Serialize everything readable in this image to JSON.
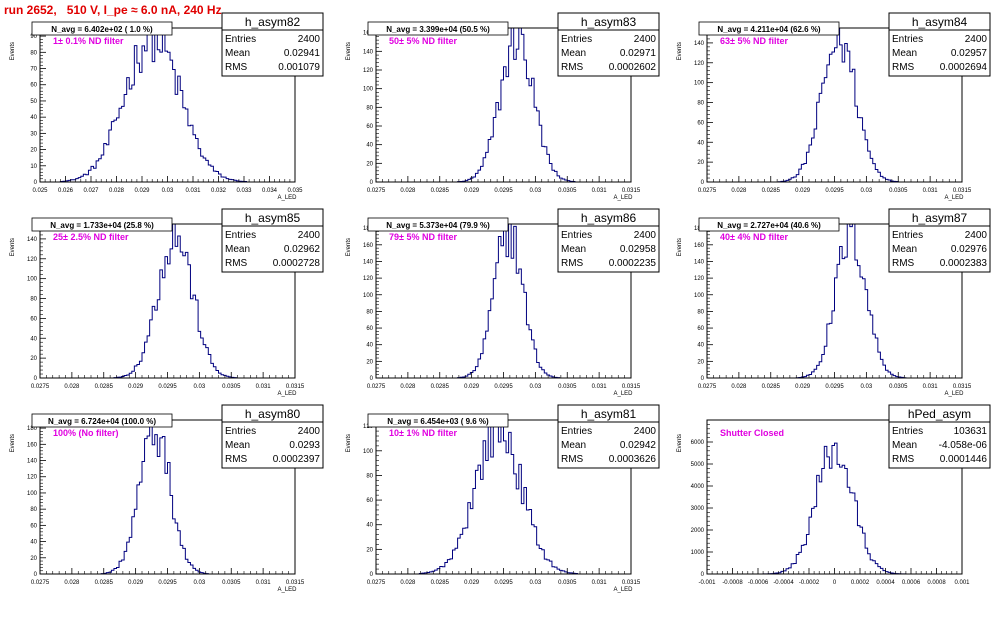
{
  "page_title": "run 2652,   510 V, I_pe ≈ 6.0 nA, 240 Hz",
  "stats_labels": {
    "entries": "Entries",
    "mean": "Mean",
    "rms": "RMS"
  },
  "line_color": "#00007f",
  "filter_color": "#e000e0",
  "chart_data": [
    {
      "type": "histogram",
      "name": "h_asym82",
      "ylabel": "Events",
      "xlabel": "A_LED",
      "navg": "N_avg = 6.402e+02 ( 1.0 %)",
      "filter": "1± 0.1% ND filter",
      "stats": {
        "entries": "2400",
        "mean": "0.02941",
        "rms": "0.001079"
      },
      "xlim": [
        0.025,
        0.035
      ],
      "ylim": [
        0,
        95
      ],
      "xticks": [
        0.025,
        0.026,
        0.027,
        0.028,
        0.029,
        0.03,
        0.031,
        0.032,
        0.033,
        0.034,
        0.035
      ],
      "xticklabels": [
        "0.025",
        "0.026",
        "0.027",
        "0.028",
        "0.029",
        "0.03",
        "0.031",
        "0.032",
        "0.033",
        "0.034",
        "0.035"
      ],
      "yticks": [
        0,
        10,
        20,
        30,
        40,
        50,
        60,
        70,
        80,
        90
      ],
      "yticklabels": [
        "0",
        "10",
        "20",
        "30",
        "40",
        "50",
        "60",
        "70",
        "80",
        "90"
      ],
      "mean": 0.02941,
      "sigma": 0.001079,
      "peak": 90
    },
    {
      "type": "histogram",
      "name": "h_asym83",
      "ylabel": "Events",
      "xlabel": "A_LED",
      "navg": "N_avg = 3.399e+04 (50.5 %)",
      "filter": "50± 5% ND filter",
      "stats": {
        "entries": "2400",
        "mean": "0.02971",
        "rms": "0.0002602"
      },
      "xlim": [
        0.0275,
        0.0315
      ],
      "ylim": [
        0,
        165
      ],
      "xticks": [
        0.0275,
        0.028,
        0.0285,
        0.029,
        0.0295,
        0.03,
        0.0305,
        0.031,
        0.0315
      ],
      "xticklabels": [
        "0.0275",
        "0.028",
        "0.0285",
        "0.029",
        "0.0295",
        "0.03",
        "0.0305",
        "0.031",
        "0.0315"
      ],
      "yticks": [
        0,
        20,
        40,
        60,
        80,
        100,
        120,
        140,
        160
      ],
      "yticklabels": [
        "0",
        "20",
        "40",
        "60",
        "80",
        "100",
        "120",
        "140",
        "160"
      ],
      "mean": 0.02971,
      "sigma": 0.0002602,
      "peak": 155
    },
    {
      "type": "histogram",
      "name": "h_asym84",
      "ylabel": "Events",
      "xlabel": "A_LED",
      "navg": "N_avg = 4.211e+04 (62.6 %)",
      "filter": "63± 5% ND filter",
      "stats": {
        "entries": "2400",
        "mean": "0.02957",
        "rms": "0.0002694"
      },
      "xlim": [
        0.0275,
        0.0315
      ],
      "ylim": [
        0,
        155
      ],
      "xticks": [
        0.0275,
        0.028,
        0.0285,
        0.029,
        0.0295,
        0.03,
        0.0305,
        0.031,
        0.0315
      ],
      "xticklabels": [
        "0.0275",
        "0.028",
        "0.0285",
        "0.029",
        "0.0295",
        "0.03",
        "0.0305",
        "0.031",
        "0.0315"
      ],
      "yticks": [
        0,
        20,
        40,
        60,
        80,
        100,
        120,
        140
      ],
      "yticklabels": [
        "0",
        "20",
        "40",
        "60",
        "80",
        "100",
        "120",
        "140"
      ],
      "mean": 0.02957,
      "sigma": 0.0002694,
      "peak": 145
    },
    {
      "type": "histogram",
      "name": "h_asym85",
      "ylabel": "Events",
      "xlabel": "A_LED",
      "navg": "N_avg = 1.733e+04 (25.8 %)",
      "filter": "25± 2.5% ND filter",
      "stats": {
        "entries": "2400",
        "mean": "0.02962",
        "rms": "0.0002728"
      },
      "xlim": [
        0.0275,
        0.0315
      ],
      "ylim": [
        0,
        155
      ],
      "xticks": [
        0.0275,
        0.028,
        0.0285,
        0.029,
        0.0295,
        0.03,
        0.0305,
        0.031,
        0.0315
      ],
      "xticklabels": [
        "0.0275",
        "0.028",
        "0.0285",
        "0.029",
        "0.0295",
        "0.03",
        "0.0305",
        "0.031",
        "0.0315"
      ],
      "yticks": [
        0,
        20,
        40,
        60,
        80,
        100,
        120,
        140
      ],
      "yticklabels": [
        "0",
        "20",
        "40",
        "60",
        "80",
        "100",
        "120",
        "140"
      ],
      "mean": 0.02962,
      "sigma": 0.0002728,
      "peak": 145
    },
    {
      "type": "histogram",
      "name": "h_asym86",
      "ylabel": "Events",
      "xlabel": "A_LED",
      "navg": "N_avg = 5.373e+04 (79.9 %)",
      "filter": "79± 5% ND filter",
      "stats": {
        "entries": "2400",
        "mean": "0.02958",
        "rms": "0.0002235"
      },
      "xlim": [
        0.0275,
        0.0315
      ],
      "ylim": [
        0,
        185
      ],
      "xticks": [
        0.0275,
        0.028,
        0.0285,
        0.029,
        0.0295,
        0.03,
        0.0305,
        0.031,
        0.0315
      ],
      "xticklabels": [
        "0.0275",
        "0.028",
        "0.0285",
        "0.029",
        "0.0295",
        "0.03",
        "0.0305",
        "0.031",
        "0.0315"
      ],
      "yticks": [
        0,
        20,
        40,
        60,
        80,
        100,
        120,
        140,
        160,
        180
      ],
      "yticklabels": [
        "0",
        "20",
        "40",
        "60",
        "80",
        "100",
        "120",
        "140",
        "160",
        "180"
      ],
      "mean": 0.02958,
      "sigma": 0.0002235,
      "peak": 178
    },
    {
      "type": "histogram",
      "name": "h_asym87",
      "ylabel": "Events",
      "xlabel": "A_LED",
      "navg": "N_avg = 2.727e+04 (40.6 %)",
      "filter": "40± 4% ND filter",
      "stats": {
        "entries": "2400",
        "mean": "0.02976",
        "rms": "0.0002383"
      },
      "xlim": [
        0.0275,
        0.0315
      ],
      "ylim": [
        0,
        185
      ],
      "xticks": [
        0.0275,
        0.028,
        0.0285,
        0.029,
        0.0295,
        0.03,
        0.0305,
        0.031,
        0.0315
      ],
      "xticklabels": [
        "0.0275",
        "0.028",
        "0.0285",
        "0.029",
        "0.0295",
        "0.03",
        "0.0305",
        "0.031",
        "0.0315"
      ],
      "yticks": [
        0,
        20,
        40,
        60,
        80,
        100,
        120,
        140,
        160,
        180
      ],
      "yticklabels": [
        "0",
        "20",
        "40",
        "60",
        "80",
        "100",
        "120",
        "140",
        "160",
        "180"
      ],
      "mean": 0.02976,
      "sigma": 0.0002383,
      "peak": 175
    },
    {
      "type": "histogram",
      "name": "h_asym80",
      "ylabel": "Events",
      "xlabel": "A_LED",
      "navg": "N_avg = 6.724e+04 (100.0 %)",
      "filter": "100% (No filter)",
      "stats": {
        "entries": "2400",
        "mean": "0.0293",
        "rms": "0.0002397"
      },
      "xlim": [
        0.0275,
        0.0315
      ],
      "ylim": [
        0,
        190
      ],
      "xticks": [
        0.0275,
        0.028,
        0.0285,
        0.029,
        0.0295,
        0.03,
        0.0305,
        0.031,
        0.0315
      ],
      "xticklabels": [
        "0.0275",
        "0.028",
        "0.0285",
        "0.029",
        "0.0295",
        "0.03",
        "0.0305",
        "0.031",
        "0.0315"
      ],
      "yticks": [
        0,
        20,
        40,
        60,
        80,
        100,
        120,
        140,
        160,
        180
      ],
      "yticklabels": [
        "0",
        "20",
        "40",
        "60",
        "80",
        "100",
        "120",
        "140",
        "160",
        "180"
      ],
      "mean": 0.0293,
      "sigma": 0.0002397,
      "peak": 178
    },
    {
      "type": "histogram",
      "name": "h_asym81",
      "ylabel": "Events",
      "xlabel": "A_LED",
      "navg": "N_avg = 6.454e+03 ( 9.6 %)",
      "filter": "10± 1% ND filter",
      "stats": {
        "entries": "2400",
        "mean": "0.02942",
        "rms": "0.0003626"
      },
      "xlim": [
        0.0275,
        0.0315
      ],
      "ylim": [
        0,
        125
      ],
      "xticks": [
        0.0275,
        0.028,
        0.0285,
        0.029,
        0.0295,
        0.03,
        0.0305,
        0.031,
        0.0315
      ],
      "xticklabels": [
        "0.0275",
        "0.028",
        "0.0285",
        "0.029",
        "0.0295",
        "0.03",
        "0.0305",
        "0.031",
        "0.0315"
      ],
      "yticks": [
        0,
        20,
        40,
        60,
        80,
        100,
        120
      ],
      "yticklabels": [
        "0",
        "20",
        "40",
        "60",
        "80",
        "100",
        "120"
      ],
      "mean": 0.02942,
      "sigma": 0.0003626,
      "peak": 118
    },
    {
      "type": "histogram",
      "name": "hPed_asym",
      "ylabel": "Events",
      "xlabel": "",
      "navg": "",
      "filter": "Shutter Closed",
      "stats": {
        "entries": "103631",
        "mean": "-4.058e-06",
        "rms": "0.0001446"
      },
      "xlim": [
        -0.001,
        0.001
      ],
      "ylim": [
        0,
        7000
      ],
      "xticks": [
        -0.001,
        -0.0008,
        -0.0006,
        -0.0004,
        -0.0002,
        0,
        0.0002,
        0.0004,
        0.0006,
        0.0008,
        0.001
      ],
      "xticklabels": [
        "-0.001",
        "-0.0008",
        "-0.0006",
        "-0.0004",
        "-0.0002",
        "0",
        "0.0002",
        "0.0004",
        "0.0006",
        "0.0008",
        "0.001"
      ],
      "yticks": [
        0,
        1000,
        2000,
        3000,
        4000,
        5000,
        6000
      ],
      "yticklabels": [
        "0",
        "1000",
        "2000",
        "3000",
        "4000",
        "5000",
        "6000"
      ],
      "mean": 0.0,
      "sigma": 0.0001446,
      "peak": 5700
    }
  ]
}
